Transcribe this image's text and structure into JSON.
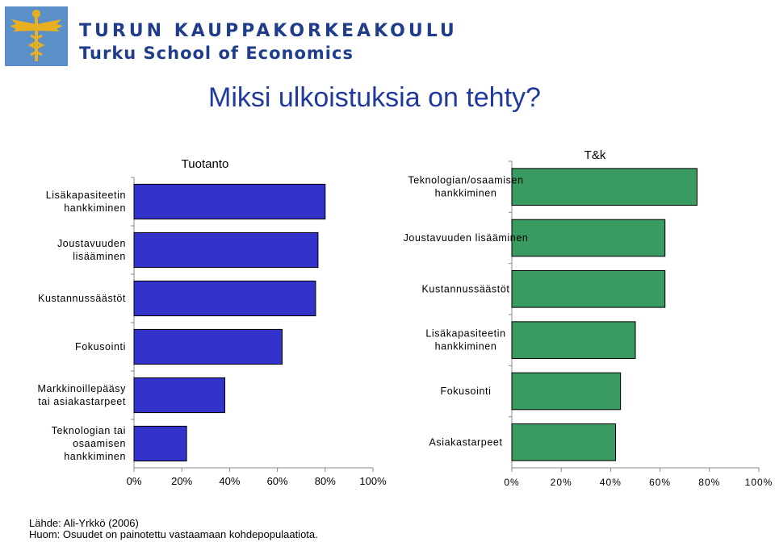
{
  "header": {
    "logo_line1": "TURUN KAUPPAKORKEAKOULU",
    "logo_line2": "Turku School of Economics",
    "title": "Miksi ulkoistuksia on tehty?"
  },
  "footer": {
    "source": "Lähde: Ali-Yrkkö (2006)",
    "note": "Huom: Osuudet on painotettu vastaamaan kohdepopulaatiota."
  },
  "colors": {
    "tuotanto_bar": "#3333cc",
    "tk_bar": "#3a9b62",
    "title": "#1f3a9c",
    "logo_blue": "#1f3d8a"
  },
  "chart_data": [
    {
      "type": "bar",
      "orientation": "horizontal",
      "title": "Tuotanto",
      "categories": [
        "Lisäkapasiteetin hankkiminen",
        "Joustavuuden lisääminen",
        "Kustannussäästöt",
        "Fokusointi",
        "Markkinoillepääsy tai asiakastarpeet",
        "Teknologian tai osaamisen hankkiminen"
      ],
      "values": [
        80,
        77,
        76,
        62,
        38,
        22
      ],
      "xlim": [
        0,
        100
      ],
      "x_ticks": [
        "0%",
        "20%",
        "40%",
        "60%",
        "80%",
        "100%"
      ],
      "grid": false
    },
    {
      "type": "bar",
      "orientation": "horizontal",
      "title": "T&k",
      "categories": [
        "Teknologian/osaamisen hankkiminen",
        "Joustavuuden lisääminen",
        "Kustannussäästöt",
        "Lisäkapasiteetin hankkiminen",
        "Fokusointi",
        "Asiakastarpeet"
      ],
      "values": [
        75,
        62,
        62,
        50,
        44,
        42
      ],
      "xlim": [
        0,
        100
      ],
      "x_ticks": [
        "0%",
        "20%",
        "40%",
        "60%",
        "80%",
        "100%"
      ],
      "grid": false
    }
  ]
}
